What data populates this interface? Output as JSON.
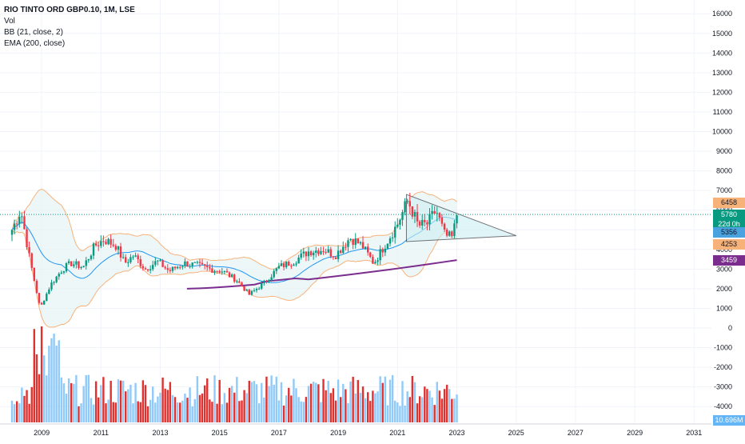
{
  "legend": {
    "symbol_line": "RIO TINTO ORD GBP0.10, 1M, LSE",
    "vol": "Vol",
    "bb": "BB (21, close, 2)",
    "ema": "EMA (200, close)"
  },
  "price_axis": {
    "ticks": [
      "16000",
      "15000",
      "14000",
      "13000",
      "12000",
      "11000",
      "10000",
      "9000",
      "8000",
      "7000",
      "6000",
      "5000",
      "4000",
      "3000",
      "2000",
      "1000",
      "0",
      "-1000",
      "-2000",
      "-3000",
      "-4000"
    ]
  },
  "time_axis": {
    "ticks": [
      "2009",
      "2011",
      "2013",
      "2015",
      "2017",
      "2019",
      "2021",
      "2023",
      "2025",
      "2027",
      "2029",
      "2031"
    ]
  },
  "badges": {
    "bb_upper": {
      "text": "6458",
      "color": "#f7b27a"
    },
    "last_price": {
      "text": "5780",
      "color": "#089981"
    },
    "countdown": {
      "text": "22d 0h",
      "color": "#089981"
    },
    "bb_basis": {
      "text": "5356",
      "color": "#4aa3df"
    },
    "bb_lower": {
      "text": "4253",
      "color": "#f7b27a"
    },
    "ema": {
      "text": "3459",
      "color": "#7b2d8e"
    },
    "volume": {
      "text": "10.696M",
      "color": "#64b5f6"
    }
  },
  "colors": {
    "up": "#089981",
    "down": "#f23645",
    "bb_band": "#f7b27a",
    "bb_basis": "#2196f3",
    "bb_fill": "#e3f2f4",
    "ema": "#7b2d8e",
    "vol_up": "#90caf9",
    "vol_down": "#e0312f",
    "triangle_fill": "#cdeff2",
    "grid": "#f0f3fa",
    "axis_text": "#131722",
    "last_line": "#089981"
  },
  "chart_data": {
    "type": "candlestick",
    "title": "RIO TINTO ORD GBP0.10, 1M, LSE",
    "xlabel": "",
    "ylabel": "",
    "ylim": [
      -4500,
      16800
    ],
    "x_start": 2008.0,
    "step_months": 1,
    "price_points_yearly": [
      [
        2008.0,
        5000
      ],
      [
        2008.3,
        6000
      ],
      [
        2008.6,
        3500
      ],
      [
        2008.95,
        1000
      ],
      [
        2009.3,
        2200
      ],
      [
        2009.7,
        3000
      ],
      [
        2010.0,
        3300
      ],
      [
        2010.4,
        3100
      ],
      [
        2010.8,
        4200
      ],
      [
        2011.1,
        4500
      ],
      [
        2011.5,
        4200
      ],
      [
        2011.8,
        3300
      ],
      [
        2012.1,
        3700
      ],
      [
        2012.5,
        3000
      ],
      [
        2012.9,
        3400
      ],
      [
        2013.3,
        2900
      ],
      [
        2013.8,
        3300
      ],
      [
        2014.2,
        3200
      ],
      [
        2014.7,
        3000
      ],
      [
        2015.1,
        2900
      ],
      [
        2015.6,
        2400
      ],
      [
        2016.0,
        1700
      ],
      [
        2016.5,
        2300
      ],
      [
        2017.0,
        3100
      ],
      [
        2017.5,
        3400
      ],
      [
        2018.0,
        3900
      ],
      [
        2018.5,
        4000
      ],
      [
        2018.9,
        3700
      ],
      [
        2019.4,
        4600
      ],
      [
        2019.8,
        4200
      ],
      [
        2020.2,
        3300
      ],
      [
        2020.6,
        4300
      ],
      [
        2021.0,
        5300
      ],
      [
        2021.35,
        6500
      ],
      [
        2021.7,
        5200
      ],
      [
        2022.0,
        5300
      ],
      [
        2022.3,
        6000
      ],
      [
        2022.6,
        4700
      ],
      [
        2022.85,
        4600
      ],
      [
        2023.0,
        5780
      ]
    ],
    "bb_last": {
      "upper": 6458,
      "basis": 5356,
      "lower": 4253
    },
    "ema_last": 3459,
    "ema_start": {
      "x": 2013.9,
      "y": 2000
    },
    "volume_last": "10.696M",
    "triangle": [
      [
        2021.3,
        6800
      ],
      [
        2025.0,
        4700
      ],
      [
        2021.3,
        4400
      ]
    ],
    "last_price": 5780
  }
}
